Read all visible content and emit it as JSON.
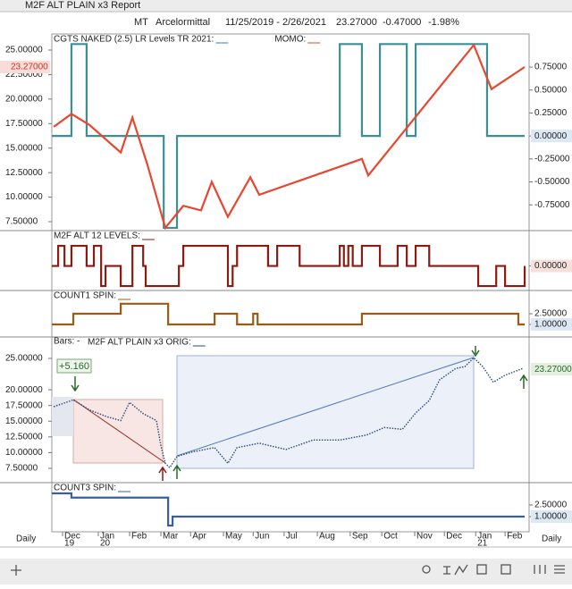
{
  "window": {
    "title": "M2F ALT PLAIN x3 Report"
  },
  "header": {
    "symbol": "MT",
    "name": "Arcelormittal",
    "range": "11/25/2019 - 2/26/2021",
    "last": "23.27000",
    "change": "-0.47000",
    "change_pct": "-1.98%"
  },
  "x_axis": {
    "xlim": [
      -0.34,
      14.76
    ],
    "xticks": [
      {
        "value": 0,
        "label": "Dec"
      },
      {
        "value": 1.13,
        "label": "Jan"
      },
      {
        "value": 2.12,
        "label": "Feb"
      },
      {
        "value": 3.11,
        "label": "Mar"
      },
      {
        "value": 4.05,
        "label": "Apr"
      },
      {
        "value": 5.09,
        "label": "May"
      },
      {
        "value": 6.03,
        "label": "Jun"
      },
      {
        "value": 7.01,
        "label": "Jul"
      },
      {
        "value": 8.06,
        "label": "Aug"
      },
      {
        "value": 9.1,
        "label": "Sep"
      },
      {
        "value": 10.1,
        "label": "Oct"
      },
      {
        "value": 11.14,
        "label": "Nov"
      },
      {
        "value": 12.08,
        "label": "Dec"
      },
      {
        "value": 13.07,
        "label": "Jan"
      },
      {
        "value": 14.0,
        "label": "Feb"
      }
    ],
    "years": [
      {
        "value": 0,
        "label": "19"
      },
      {
        "value": 1.13,
        "label": "20"
      },
      {
        "value": 13.07,
        "label": "21"
      }
    ],
    "period": "Daily"
  },
  "chart_data": [
    {
      "type": "line",
      "ylim": [
        6.59,
        26.64
      ],
      "yticks": [
        {
          "value": 25,
          "label": "25.00000"
        },
        {
          "value": 22.5,
          "label": "22.50000"
        },
        {
          "value": 20,
          "label": "20.00000"
        },
        {
          "value": 17.5,
          "label": "17.50000"
        },
        {
          "value": 15,
          "label": "15.00000"
        },
        {
          "value": 12.5,
          "label": "12.50000"
        },
        {
          "value": 10,
          "label": "10.00000"
        },
        {
          "value": 7.5,
          "label": "7.50000"
        }
      ],
      "y2lim": [
        -1.03,
        1.11
      ],
      "y2ticks": [
        {
          "value": 0.75,
          "label": "0.75000"
        },
        {
          "value": 0.5,
          "label": "0.50000"
        },
        {
          "value": 0.25,
          "label": "0.25000"
        },
        {
          "value": 0,
          "label": "0.00000"
        },
        {
          "value": -0.25,
          "label": "-0.25000"
        },
        {
          "value": -0.5,
          "label": "-0.50000"
        },
        {
          "value": -0.75,
          "label": "-0.75000"
        }
      ],
      "current_price": {
        "value": 23.27,
        "label": "23.27000"
      },
      "series": [
        {
          "name": "CGTS NAKED (2.5) LR Levels TR 2021:",
          "color": "#3d8f96",
          "axis": "y2",
          "step": true,
          "x": [
            -0.34,
            0.28,
            0.76,
            3.2,
            3.62,
            8.77,
            9.47,
            10.04,
            10.89,
            11.17,
            13.43,
            14.62
          ],
          "values": [
            0,
            1,
            0,
            -1,
            0,
            1,
            0,
            1,
            0,
            1,
            0,
            0
          ]
        },
        {
          "name": "MOMO:",
          "color": "#e8472f",
          "axis": "y2",
          "x": [
            -0.28,
            0.28,
            0.85,
            1.84,
            2.21,
            2.69,
            3.25,
            3.82,
            4.38,
            4.72,
            5.23,
            5.94,
            6.22,
            9.47,
            9.67,
            13.01,
            13.57,
            14.62
          ],
          "values": [
            0.1,
            0.24,
            0.12,
            -0.18,
            0.2,
            -0.32,
            -1.0,
            -0.76,
            -0.81,
            -0.5,
            -0.88,
            -0.45,
            -0.64,
            -0.25,
            -0.43,
            0.99,
            0.51,
            0.75
          ]
        }
      ]
    },
    {
      "type": "line",
      "y2lim": [
        -1.22,
        1.76
      ],
      "y2ticks": [
        {
          "value": 0,
          "label": "0.00000"
        }
      ],
      "series": [
        {
          "name": "M2F ALT 12 LEVELS:",
          "color": "#8b1a10",
          "axis": "y2",
          "step": true,
          "x": [
            -0.34,
            -0.14,
            0.06,
            0.28,
            0.76,
            0.99,
            1.22,
            1.36,
            1.84,
            2.21,
            2.55,
            2.63,
            3.68,
            3.82,
            4.38,
            5.23,
            5.38,
            5.52,
            6.22,
            6.5,
            6.79,
            7.5,
            8.2,
            8.77,
            8.9,
            9.04,
            9.18,
            9.47,
            10.04,
            10.6,
            10.89,
            11.17,
            11.6,
            12.87,
            13.15,
            13.43,
            13.72,
            14.0,
            14.62
          ],
          "values": [
            0,
            1,
            0,
            1,
            0,
            1,
            -1,
            0,
            -1,
            1,
            0,
            -1,
            0,
            1,
            1,
            -1,
            0,
            1,
            1,
            0,
            1,
            0,
            0,
            1,
            0,
            1,
            0,
            1,
            0,
            1,
            0,
            1,
            0,
            0,
            -1,
            -1,
            0,
            -1,
            0
          ]
        }
      ]
    },
    {
      "type": "line",
      "y2lim": [
        -0.75,
        5.75
      ],
      "y2ticks": [
        {
          "value": 2.5,
          "label": "2.50000"
        },
        {
          "value": 1,
          "label": "1.00000"
        }
      ],
      "series": [
        {
          "name": "COUNT1 SPIN:",
          "color": "#9c5a12",
          "axis": "y2",
          "step": true,
          "x": [
            -0.34,
            0.34,
            1.84,
            3.34,
            4.81,
            5.52,
            6.03,
            6.17,
            9.47,
            13.43,
            14.42,
            14.62
          ],
          "values": [
            1,
            2.5,
            3.9,
            1,
            2.5,
            1,
            2.5,
            1,
            2.5,
            2.5,
            1,
            1
          ]
        }
      ]
    },
    {
      "type": "line",
      "ylim": [
        5.22,
        28.41
      ],
      "yticks": [
        {
          "value": 25,
          "label": "25.00000"
        },
        {
          "value": 20,
          "label": "20.00000"
        },
        {
          "value": 17.5,
          "label": "17.50000"
        },
        {
          "value": 15,
          "label": "15.00000"
        },
        {
          "value": 12.5,
          "label": "12.50000"
        },
        {
          "value": 10,
          "label": "10.00000"
        },
        {
          "value": 7.5,
          "label": "7.50000"
        }
      ],
      "current_price": {
        "value": 23.27,
        "label": "23.27000"
      },
      "bars_label": "Bars:",
      "bars_value": "-",
      "annotation": "+5.160",
      "series": [
        {
          "name": "M2F ALT PLAIN x3 ORIG:",
          "color": "#2a4a7a",
          "dotted": true,
          "x": [
            -0.28,
            0.34,
            0.85,
            1.41,
            1.84,
            2.12,
            2.55,
            2.97,
            3.11,
            3.25,
            3.39,
            3.62,
            4.1,
            4.81,
            5.23,
            5.52,
            6.22,
            7.07,
            7.92,
            8.77,
            9.62,
            10.18,
            10.75,
            11.17,
            11.6,
            11.93,
            12.44,
            12.73,
            13.01,
            13.29,
            13.63,
            13.99,
            14.56
          ],
          "values": [
            17.3,
            18.4,
            16.8,
            15.7,
            15.1,
            18.0,
            16.2,
            15.1,
            11.1,
            8.3,
            7.6,
            9.4,
            10.1,
            10.8,
            8.3,
            10.8,
            11.5,
            10.5,
            12.0,
            12.0,
            12.8,
            14.0,
            13.7,
            16.3,
            18.3,
            21.6,
            23.4,
            23.7,
            25.1,
            23.7,
            21.2,
            22.3,
            23.4
          ]
        }
      ]
    },
    {
      "type": "line",
      "y2lim": [
        -0.96,
        5.38
      ],
      "y2ticks": [
        {
          "value": 2.5,
          "label": "2.50000"
        },
        {
          "value": 1,
          "label": "1.00000"
        }
      ],
      "series": [
        {
          "name": "COUNT3 SPIN:",
          "color": "#3b5f9c",
          "axis": "y2",
          "step": true,
          "x": [
            -0.34,
            0.28,
            3.34,
            3.48,
            14.62
          ],
          "values": [
            4,
            3.45,
            -0.15,
            1,
            1
          ]
        }
      ]
    }
  ]
}
